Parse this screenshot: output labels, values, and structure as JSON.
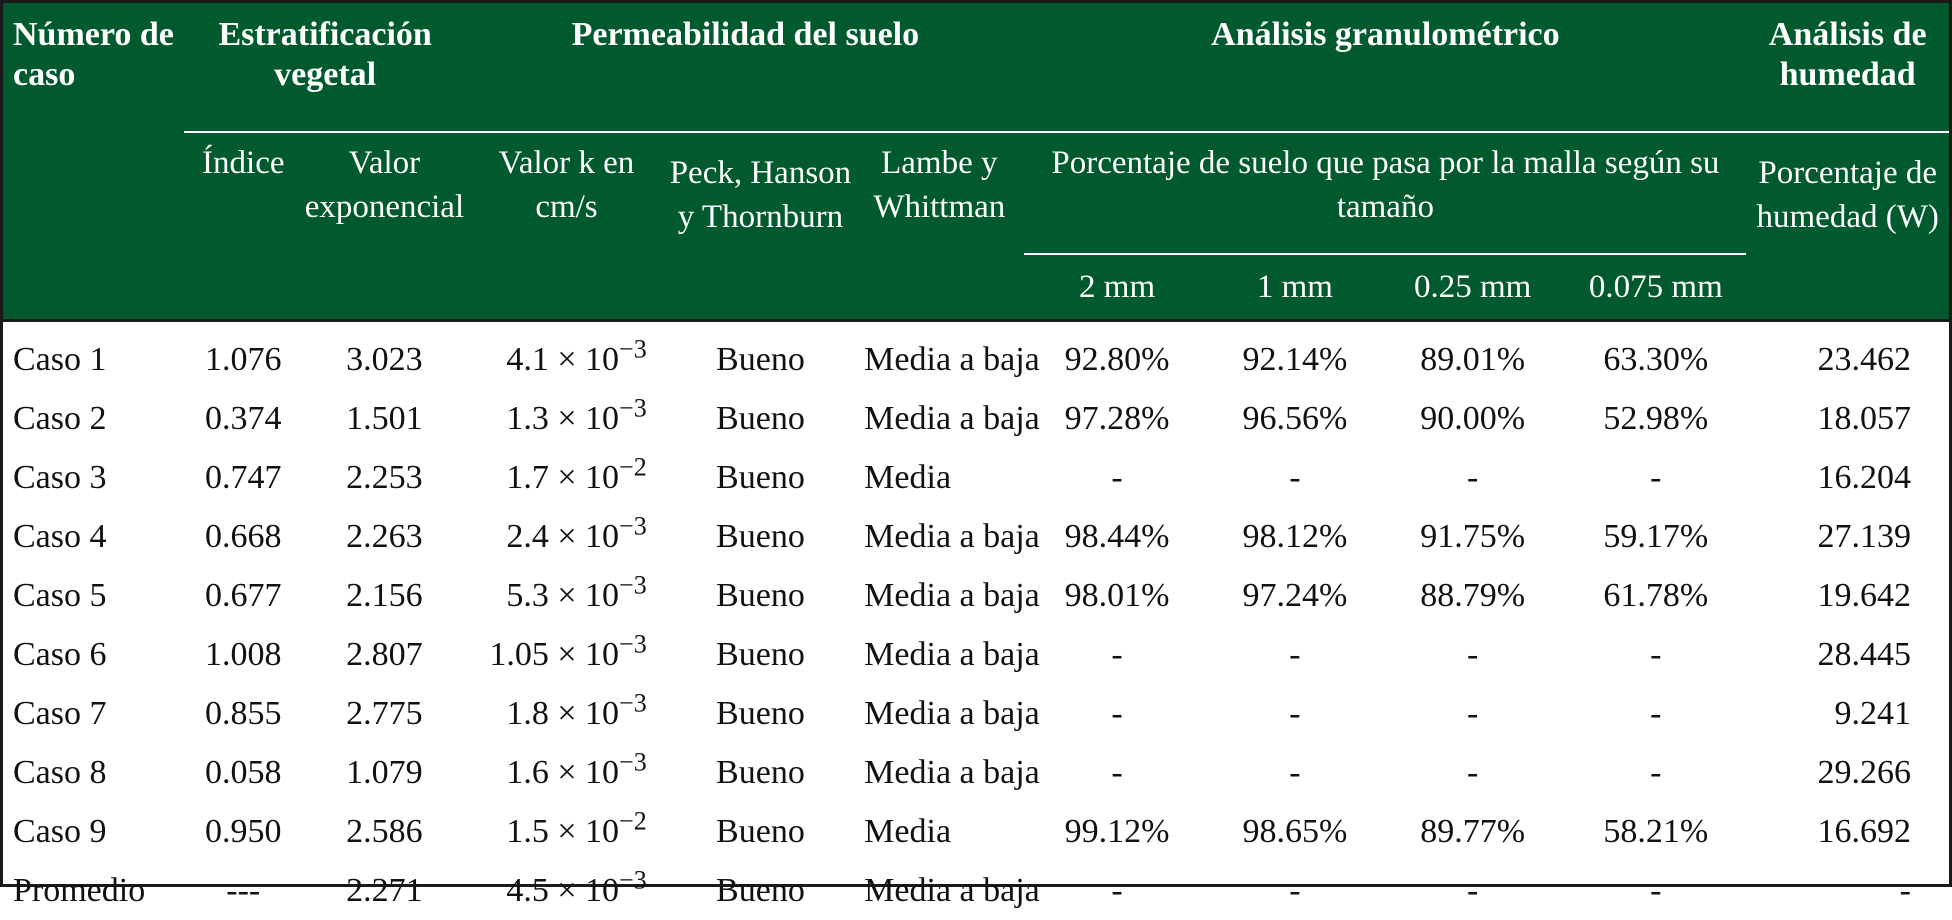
{
  "table": {
    "group_headers": {
      "case_number": "Número de caso",
      "vegetal": "Estratificación vegetal",
      "permeability": "Permeabilidad del suelo",
      "granulometric": "Análisis granulométrico",
      "humidity": "Análisis de humedad"
    },
    "sub_headers": {
      "index": "Índice",
      "exponential": "Valor exponencial",
      "k_value": "Valor k en cm/s",
      "peck": "Peck, Hanson y Thornburn",
      "lambe": "Lambe y Whittman",
      "sieve_percentage": "Porcentaje de suelo que pasa por la malla según su tamaño",
      "humidity_percentage": "Porcentaje de humedad (W)"
    },
    "sieve_sizes": [
      "2 mm",
      "1 mm",
      "0.25 mm",
      "0.075 mm"
    ],
    "rows": [
      {
        "case": "Caso 1",
        "index": "1.076",
        "exp": "3.023",
        "k_base": "4.1 × 10",
        "k_exp": "−3",
        "peck": "Bueno",
        "lambe": "Media a baja",
        "s2": "92.80%",
        "s1": "92.14%",
        "s025": "89.01%",
        "s0075": "63.30%",
        "w": "23.462"
      },
      {
        "case": "Caso 2",
        "index": "0.374",
        "exp": "1.501",
        "k_base": "1.3 × 10",
        "k_exp": "−3",
        "peck": "Bueno",
        "lambe": "Media a baja",
        "s2": "97.28%",
        "s1": "96.56%",
        "s025": "90.00%",
        "s0075": "52.98%",
        "w": "18.057"
      },
      {
        "case": "Caso 3",
        "index": "0.747",
        "exp": "2.253",
        "k_base": "1.7 × 10",
        "k_exp": "−2",
        "peck": "Bueno",
        "lambe": "Media",
        "s2": "-",
        "s1": "-",
        "s025": "-",
        "s0075": "-",
        "w": "16.204"
      },
      {
        "case": "Caso 4",
        "index": "0.668",
        "exp": "2.263",
        "k_base": "2.4 × 10",
        "k_exp": "−3",
        "peck": "Bueno",
        "lambe": "Media a baja",
        "s2": "98.44%",
        "s1": "98.12%",
        "s025": "91.75%",
        "s0075": "59.17%",
        "w": "27.139"
      },
      {
        "case": "Caso 5",
        "index": "0.677",
        "exp": "2.156",
        "k_base": "5.3 × 10",
        "k_exp": "−3",
        "peck": "Bueno",
        "lambe": "Media a baja",
        "s2": "98.01%",
        "s1": "97.24%",
        "s025": "88.79%",
        "s0075": "61.78%",
        "w": "19.642"
      },
      {
        "case": "Caso 6",
        "index": "1.008",
        "exp": "2.807",
        "k_base": "1.05 × 10",
        "k_exp": "−3",
        "peck": "Bueno",
        "lambe": "Media a baja",
        "s2": "-",
        "s1": "-",
        "s025": "-",
        "s0075": "-",
        "w": "28.445"
      },
      {
        "case": "Caso 7",
        "index": "0.855",
        "exp": "2.775",
        "k_base": "1.8 × 10",
        "k_exp": "−3",
        "peck": "Bueno",
        "lambe": "Media a baja",
        "s2": "-",
        "s1": "-",
        "s025": "-",
        "s0075": "-",
        "w": "9.241"
      },
      {
        "case": "Caso 8",
        "index": "0.058",
        "exp": "1.079",
        "k_base": "1.6 × 10",
        "k_exp": "−3",
        "peck": "Bueno",
        "lambe": "Media a baja",
        "s2": "-",
        "s1": "-",
        "s025": "-",
        "s0075": "-",
        "w": "29.266"
      },
      {
        "case": "Caso 9",
        "index": "0.950",
        "exp": "2.586",
        "k_base": "1.5 × 10",
        "k_exp": "−2",
        "peck": "Bueno",
        "lambe": "Media",
        "s2": "99.12%",
        "s1": "98.65%",
        "s025": "89.77%",
        "s0075": "58.21%",
        "w": "16.692"
      },
      {
        "case": "Promedio",
        "index": "---",
        "exp": "2.271",
        "k_base": "4.5 × 10",
        "k_exp": "−3",
        "peck": "Bueno",
        "lambe": "Media a baja",
        "s2": "-",
        "s1": "-",
        "s025": "-",
        "s0075": "-",
        "w": "-"
      }
    ]
  },
  "colors": {
    "header_bg": "#005a2e",
    "header_text": "#ffffff",
    "body_text": "#111111"
  }
}
